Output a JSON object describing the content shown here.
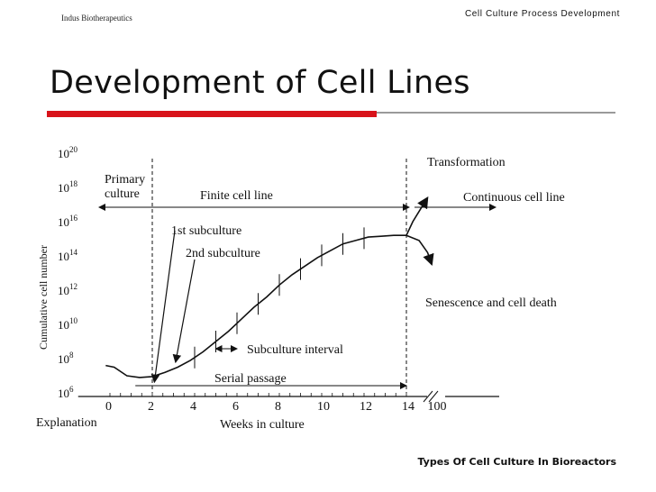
{
  "header": {
    "left": "Indus Biotherapeutics",
    "right": "Cell Culture Process Development"
  },
  "slide": {
    "title": "Development of Cell Lines",
    "footer": "Types Of Cell Culture In Bioreactors"
  },
  "colors": {
    "accent_bar": "#d8131a",
    "rule": "#9a9a9a"
  },
  "chart_data": {
    "type": "line",
    "xlabel": "Weeks in culture",
    "ylabel": "Cumulative cell number",
    "x_ticks": [
      "0",
      "2",
      "4",
      "6",
      "8",
      "10",
      "12",
      "14",
      "100"
    ],
    "y_ticks": [
      {
        "base": "10",
        "exp": "6"
      },
      {
        "base": "10",
        "exp": "8"
      },
      {
        "base": "10",
        "exp": "10"
      },
      {
        "base": "10",
        "exp": "12"
      },
      {
        "base": "10",
        "exp": "14"
      },
      {
        "base": "10",
        "exp": "16"
      },
      {
        "base": "10",
        "exp": "18"
      },
      {
        "base": "10",
        "exp": "20"
      }
    ],
    "log_scale_y": true,
    "series": [
      {
        "x": [
          -0.2,
          0.2,
          0.8,
          1.4,
          2.0,
          2.6,
          3.2,
          3.8,
          4.4,
          5.0,
          5.6,
          6.2,
          6.8,
          7.4,
          8.0,
          8.6,
          9.2,
          9.8,
          10.4,
          11.0,
          11.6,
          12.2,
          12.8,
          13.4,
          14.0
        ],
        "y": [
          7.6,
          7.5,
          7.0,
          6.9,
          6.95,
          7.2,
          7.5,
          7.9,
          8.4,
          9.0,
          9.6,
          10.3,
          11.0,
          11.6,
          12.3,
          12.9,
          13.4,
          13.9,
          14.3,
          14.7,
          14.9,
          15.1,
          15.15,
          15.2,
          15.2
        ]
      }
    ],
    "transformation_branch": {
      "x": [
        14.0,
        14.3,
        14.7,
        15.0
      ],
      "y": [
        15.2,
        16.0,
        16.8,
        17.4
      ]
    },
    "senescence_branch": {
      "x": [
        14.0,
        14.6,
        15.0,
        15.2
      ],
      "y": [
        15.2,
        14.9,
        14.2,
        13.5
      ]
    },
    "subculture_marks_x": [
      4,
      5,
      6,
      7,
      8,
      9,
      10,
      11,
      12
    ],
    "annotations": {
      "transformation": "Transformation",
      "primary_culture_l1": "Primary",
      "primary_culture_l2": "culture",
      "finite_cell_line": "Finite cell line",
      "continuous_cell_line": "Continuous cell line",
      "first_subculture": "1st subculture",
      "second_subculture": "2nd subculture",
      "senescence": "Senescence and cell death",
      "subculture_interval": "Subculture interval",
      "serial_passage": "Serial passage",
      "explanation": "Explanation"
    }
  }
}
